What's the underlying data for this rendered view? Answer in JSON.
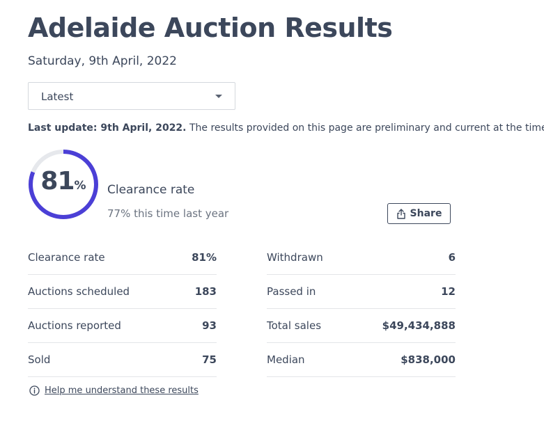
{
  "header": {
    "title": "Adelaide Auction Results",
    "date": "Saturday, 9th April, 2022"
  },
  "filter": {
    "selected": "Latest"
  },
  "update": {
    "bold": "Last update: 9th April, 2022.",
    "text": " The results provided on this page are preliminary and current at the time of"
  },
  "clearance": {
    "value": 81,
    "value_text": "81",
    "percent_sign": "%",
    "label": "Clearance rate",
    "last_year": "77% this time last year"
  },
  "share": {
    "label": "Share",
    "icon": "share-icon"
  },
  "stats": {
    "left": [
      {
        "label": "Clearance rate",
        "value": "81%"
      },
      {
        "label": "Auctions scheduled",
        "value": "183"
      },
      {
        "label": "Auctions reported",
        "value": "93"
      },
      {
        "label": "Sold",
        "value": "75"
      }
    ],
    "right": [
      {
        "label": "Withdrawn",
        "value": "6"
      },
      {
        "label": "Passed in",
        "value": "12"
      },
      {
        "label": "Total sales",
        "value": "$49,434,888"
      },
      {
        "label": "Median",
        "value": "$838,000"
      }
    ]
  },
  "help": {
    "label": "Help me understand these results",
    "icon": "info-icon"
  },
  "colors": {
    "accent": "#4b3fd6",
    "track": "#e6e8ec",
    "text": "#3c475b"
  }
}
